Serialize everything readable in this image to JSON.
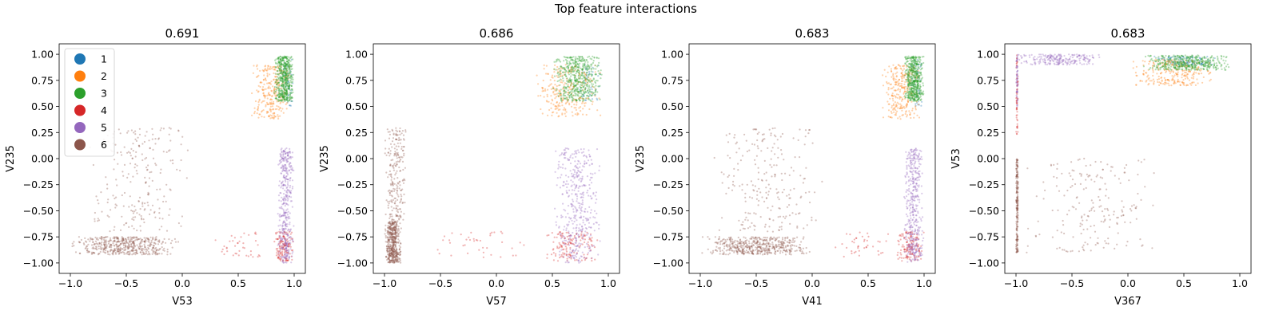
{
  "figure": {
    "suptitle": "Top feature interactions"
  },
  "colors": {
    "1": "#1f77b4",
    "2": "#ff7f0e",
    "3": "#2ca02c",
    "4": "#d62728",
    "5": "#9467bd",
    "6": "#8c564b"
  },
  "legend": {
    "entries": [
      "1",
      "2",
      "3",
      "4",
      "5",
      "6"
    ],
    "placement": "upper-left of first panel"
  },
  "chart_data": [
    {
      "type": "scatter",
      "title": "0.691",
      "xlabel": "V53",
      "ylabel": "V235",
      "xlim": [
        -1.1,
        1.1
      ],
      "ylim": [
        -1.1,
        1.1
      ],
      "xticks": [
        "-1.0",
        "-0.5",
        "0.0",
        "0.5",
        "1.0"
      ],
      "yticks": [
        "-1.00",
        "-0.75",
        "-0.50",
        "-0.25",
        "0.00",
        "0.25",
        "0.50",
        "0.75",
        "1.00"
      ],
      "series": [
        {
          "name": "1",
          "clusters": [
            {
              "x": [
                0.88,
                1.0
              ],
              "y": [
                0.5,
                0.95
              ],
              "n": 40
            }
          ]
        },
        {
          "name": "2",
          "clusters": [
            {
              "x": [
                0.62,
                0.98
              ],
              "y": [
                0.38,
                0.9
              ],
              "n": 260
            }
          ]
        },
        {
          "name": "3",
          "clusters": [
            {
              "x": [
                0.82,
                1.0
              ],
              "y": [
                0.55,
                0.98
              ],
              "n": 520
            }
          ]
        },
        {
          "name": "4",
          "clusters": [
            {
              "x": [
                0.2,
                0.75
              ],
              "y": [
                -0.95,
                -0.7
              ],
              "n": 40
            },
            {
              "x": [
                0.8,
                1.0
              ],
              "y": [
                -0.98,
                -0.7
              ],
              "n": 140
            }
          ]
        },
        {
          "name": "5",
          "clusters": [
            {
              "x": [
                0.85,
                1.0
              ],
              "y": [
                -1.0,
                0.1
              ],
              "n": 420
            }
          ]
        },
        {
          "name": "6",
          "clusters": [
            {
              "x": [
                -1.0,
                0.0
              ],
              "y": [
                -0.92,
                -0.75
              ],
              "n": 480
            },
            {
              "x": [
                -0.9,
                0.1
              ],
              "y": [
                -0.7,
                0.3
              ],
              "n": 230
            }
          ]
        }
      ]
    },
    {
      "type": "scatter",
      "title": "0.686",
      "xlabel": "V57",
      "ylabel": "V235",
      "xlim": [
        -1.1,
        1.1
      ],
      "ylim": [
        -1.1,
        1.1
      ],
      "xticks": [
        "-1.0",
        "-0.5",
        "0.0",
        "0.5",
        "1.0"
      ],
      "yticks": [
        "-1.00",
        "-0.75",
        "-0.50",
        "-0.25",
        "0.00",
        "0.25",
        "0.50",
        "0.75",
        "1.00"
      ],
      "series": [
        {
          "name": "1",
          "clusters": [
            {
              "x": [
                0.7,
                0.95
              ],
              "y": [
                0.55,
                0.9
              ],
              "n": 40
            }
          ]
        },
        {
          "name": "2",
          "clusters": [
            {
              "x": [
                0.35,
                0.95
              ],
              "y": [
                0.4,
                0.9
              ],
              "n": 260
            }
          ]
        },
        {
          "name": "3",
          "clusters": [
            {
              "x": [
                0.5,
                0.95
              ],
              "y": [
                0.55,
                0.98
              ],
              "n": 520
            }
          ]
        },
        {
          "name": "4",
          "clusters": [
            {
              "x": [
                -0.65,
                0.35
              ],
              "y": [
                -0.95,
                -0.7
              ],
              "n": 40
            },
            {
              "x": [
                0.4,
                0.95
              ],
              "y": [
                -0.98,
                -0.7
              ],
              "n": 140
            }
          ]
        },
        {
          "name": "5",
          "clusters": [
            {
              "x": [
                0.5,
                0.95
              ],
              "y": [
                -1.0,
                0.1
              ],
              "n": 420
            }
          ]
        },
        {
          "name": "6",
          "clusters": [
            {
              "x": [
                -1.0,
                -0.85
              ],
              "y": [
                -1.0,
                -0.6
              ],
              "n": 480
            },
            {
              "x": [
                -1.0,
                -0.8
              ],
              "y": [
                -0.6,
                0.3
              ],
              "n": 230
            }
          ]
        }
      ]
    },
    {
      "type": "scatter",
      "title": "0.683",
      "xlabel": "V41",
      "ylabel": "V235",
      "xlim": [
        -1.1,
        1.1
      ],
      "ylim": [
        -1.1,
        1.1
      ],
      "xticks": [
        "-1.0",
        "-0.5",
        "0.0",
        "0.5",
        "1.0"
      ],
      "yticks": [
        "-1.00",
        "-0.75",
        "-0.50",
        "-0.25",
        "0.00",
        "0.25",
        "0.50",
        "0.75",
        "1.00"
      ],
      "series": [
        {
          "name": "1",
          "clusters": [
            {
              "x": [
                0.88,
                1.0
              ],
              "y": [
                0.5,
                0.95
              ],
              "n": 40
            }
          ]
        },
        {
          "name": "2",
          "clusters": [
            {
              "x": [
                0.62,
                0.98
              ],
              "y": [
                0.38,
                0.9
              ],
              "n": 260
            }
          ]
        },
        {
          "name": "3",
          "clusters": [
            {
              "x": [
                0.82,
                1.0
              ],
              "y": [
                0.55,
                0.98
              ],
              "n": 520
            }
          ]
        },
        {
          "name": "4",
          "clusters": [
            {
              "x": [
                0.15,
                0.75
              ],
              "y": [
                -0.95,
                -0.7
              ],
              "n": 40
            },
            {
              "x": [
                0.75,
                1.0
              ],
              "y": [
                -0.98,
                -0.7
              ],
              "n": 140
            }
          ]
        },
        {
          "name": "5",
          "clusters": [
            {
              "x": [
                0.82,
                1.0
              ],
              "y": [
                -1.0,
                0.1
              ],
              "n": 420
            }
          ]
        },
        {
          "name": "6",
          "clusters": [
            {
              "x": [
                -1.0,
                0.0
              ],
              "y": [
                -0.92,
                -0.75
              ],
              "n": 480
            },
            {
              "x": [
                -0.9,
                0.1
              ],
              "y": [
                -0.7,
                0.3
              ],
              "n": 230
            }
          ]
        }
      ]
    },
    {
      "type": "scatter",
      "title": "0.683",
      "xlabel": "V367",
      "ylabel": "V53",
      "xlim": [
        -1.1,
        1.1
      ],
      "ylim": [
        -1.1,
        1.1
      ],
      "xticks": [
        "-1.0",
        "-0.5",
        "0.0",
        "0.5",
        "1.0"
      ],
      "yticks": [
        "-1.00",
        "-0.75",
        "-0.50",
        "-0.25",
        "0.00",
        "0.25",
        "0.50",
        "0.75",
        "1.00"
      ],
      "series": [
        {
          "name": "1",
          "clusters": [
            {
              "x": [
                0.2,
                0.8
              ],
              "y": [
                0.9,
                0.98
              ],
              "n": 100
            }
          ]
        },
        {
          "name": "2",
          "clusters": [
            {
              "x": [
                0.0,
                0.8
              ],
              "y": [
                0.7,
                0.95
              ],
              "n": 260
            }
          ]
        },
        {
          "name": "3",
          "clusters": [
            {
              "x": [
                0.1,
                0.95
              ],
              "y": [
                0.85,
                0.99
              ],
              "n": 420
            }
          ]
        },
        {
          "name": "4",
          "clusters": [
            {
              "x": [
                -1.0,
                -0.98
              ],
              "y": [
                0.2,
                1.0
              ],
              "n": 60
            }
          ]
        },
        {
          "name": "5",
          "clusters": [
            {
              "x": [
                -1.0,
                -0.2
              ],
              "y": [
                0.9,
                1.0
              ],
              "n": 220
            },
            {
              "x": [
                -1.0,
                -0.98
              ],
              "y": [
                0.5,
                1.0
              ],
              "n": 60
            }
          ]
        },
        {
          "name": "6",
          "clusters": [
            {
              "x": [
                -1.0,
                -0.98
              ],
              "y": [
                -0.9,
                0.0
              ],
              "n": 220
            },
            {
              "x": [
                -0.95,
                0.3
              ],
              "y": [
                -0.9,
                0.0
              ],
              "n": 200
            }
          ]
        }
      ]
    }
  ]
}
